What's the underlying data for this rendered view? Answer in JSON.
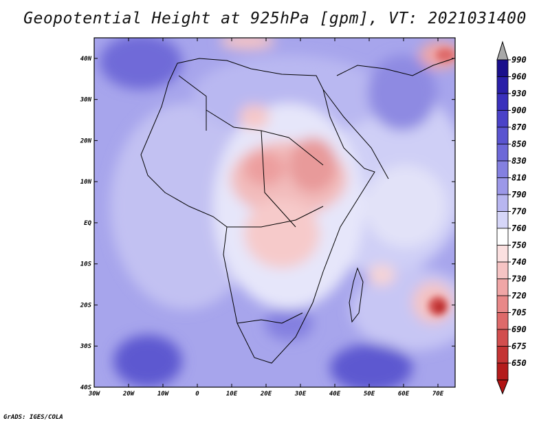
{
  "map": {
    "title": "Geopotential Height at 925hPa [gpm], VT: 2021031400",
    "variable": "Geopotential Height",
    "level": "925hPa",
    "units": "gpm",
    "valid_time": "2021031400",
    "lat_labels": [
      "40N",
      "30N",
      "20N",
      "10N",
      "EQ",
      "10S",
      "20S",
      "30S",
      "40S"
    ],
    "lon_labels": [
      "30W",
      "20W",
      "10W",
      "0",
      "10E",
      "20E",
      "30E",
      "40E",
      "50E",
      "60E",
      "70E"
    ],
    "extent": {
      "lon_min": -30,
      "lon_max": 75,
      "lat_min": -40,
      "lat_max": 45
    }
  },
  "colorbar": {
    "levels": [
      "990",
      "960",
      "930",
      "900",
      "870",
      "850",
      "830",
      "810",
      "790",
      "770",
      "760",
      "750",
      "740",
      "730",
      "720",
      "705",
      "690",
      "675",
      "650"
    ],
    "colors": [
      "#1a0f8c",
      "#2a1fa8",
      "#3a30bc",
      "#4a42c8",
      "#5a54d0",
      "#6d68d8",
      "#8480e0",
      "#9c98e8",
      "#b8b6f0",
      "#d6d6f8",
      "#ffffff",
      "#fbe0e0",
      "#f6c4c4",
      "#f0a6a6",
      "#e88888",
      "#de6a6a",
      "#d24e4e",
      "#c43434",
      "#b41c1c"
    ],
    "over_color": "#a8a8a8",
    "under_color": "#b11212"
  },
  "footer": {
    "credit": "GrADS: IGES/COLA"
  }
}
